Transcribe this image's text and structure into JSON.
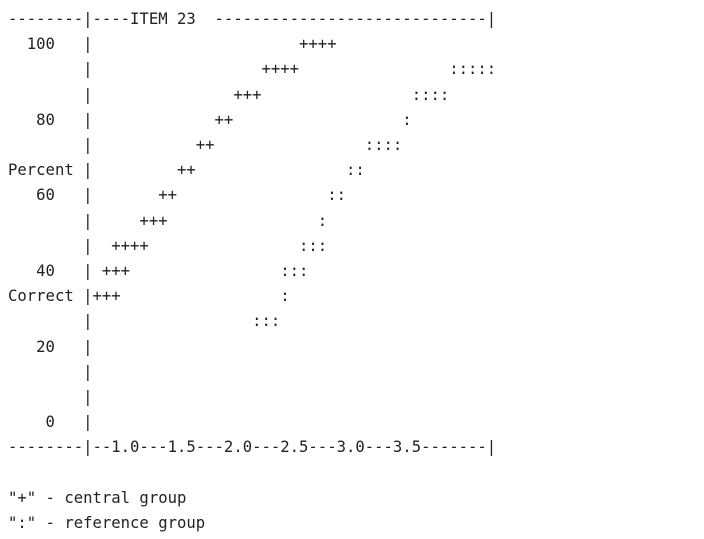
{
  "chart_data": {
    "type": "scatter",
    "title": "ITEM 23",
    "ylabel_top": "Percent",
    "ylabel_bottom": "Correct",
    "y_ticks": [
      "100",
      "80",
      "60",
      "40",
      "20",
      "0"
    ],
    "x_ticks": [
      "1.0",
      "1.5",
      "2.0",
      "2.5",
      "3.0",
      "3.5"
    ],
    "series": [
      {
        "marker": "+",
        "points": [
          {
            "x": 1.05,
            "y": 30
          },
          {
            "x": 1.35,
            "y": 40
          },
          {
            "x": 1.6,
            "y": 45
          },
          {
            "x": 1.8,
            "y": 50
          },
          {
            "x": 2.0,
            "y": 60
          },
          {
            "x": 2.15,
            "y": 65
          },
          {
            "x": 2.35,
            "y": 75
          },
          {
            "x": 2.55,
            "y": 80
          },
          {
            "x": 2.7,
            "y": 85
          },
          {
            "x": 2.9,
            "y": 95
          },
          {
            "x": 3.15,
            "y": 100
          }
        ]
      },
      {
        "marker": ":",
        "points": [
          {
            "x": 2.25,
            "y": 25
          },
          {
            "x": 2.45,
            "y": 30
          },
          {
            "x": 2.7,
            "y": 35
          },
          {
            "x": 2.95,
            "y": 45
          },
          {
            "x": 3.1,
            "y": 55
          },
          {
            "x": 3.25,
            "y": 60
          },
          {
            "x": 3.35,
            "y": 70
          },
          {
            "x": 3.65,
            "y": 75
          },
          {
            "x": 3.8,
            "y": 80
          },
          {
            "x": 3.95,
            "y": 90
          },
          {
            "x": 4.2,
            "y": 95
          }
        ]
      }
    ],
    "legend": [
      {
        "symbol": "\"+\"",
        "label": "central group"
      },
      {
        "symbol": "\":\"",
        "label": "reference group"
      }
    ]
  },
  "lines": [
    "--------|----ITEM 23  -----------------------------|",
    "  100   |                      ++++",
    "        |                  ++++                ::::: ",
    "        |               +++                :::: ",
    "   80   |             ++                  :",
    "        |           ++                ::::",
    "Percent |         ++                ::",
    "   60   |       ++                ::",
    "        |     +++                :",
    "        |  ++++                :::",
    "   40   | +++                :::",
    "Correct |+++                 :",
    "        |                 :::",
    "   20   |",
    "        |",
    "        |",
    "    0   |",
    "--------|--1.0---1.5---2.0---2.5---3.0---3.5-------|",
    "",
    "\"+\" - central group",
    "\":\" - reference group"
  ]
}
